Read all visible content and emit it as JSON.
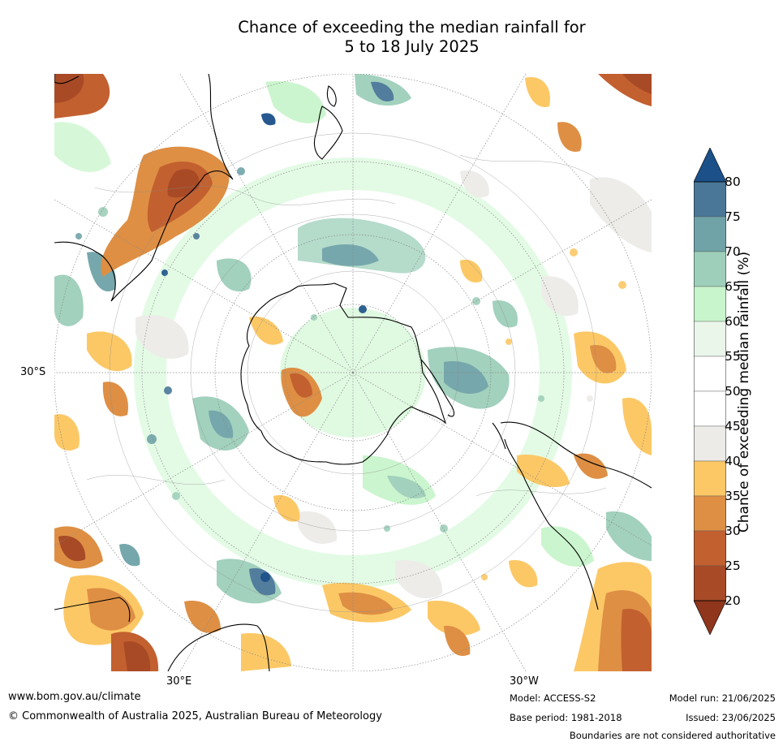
{
  "title": {
    "line1": "Chance of exceeding the median rainfall for",
    "line2": "5 to 18 July 2025"
  },
  "map": {
    "projection": "south-polar-stereographic",
    "labels": {
      "lat": "30°S",
      "lon_east": "30°E",
      "lon_west": "30°W"
    }
  },
  "legend": {
    "title": "Chance of exceeding median rainfall (%)",
    "ticks": [
      "80",
      "75",
      "70",
      "65",
      "60",
      "55",
      "50",
      "45",
      "40",
      "35",
      "30",
      "25",
      "20"
    ],
    "bins": [
      {
        "range": "75-80",
        "color": "#4a7797"
      },
      {
        "range": "70-75",
        "color": "#6fa3a8"
      },
      {
        "range": "65-70",
        "color": "#9ecfba"
      },
      {
        "range": "60-65",
        "color": "#c9f5cc"
      },
      {
        "range": "55-60",
        "color": "#eaf6ea"
      },
      {
        "range": "50-55",
        "color": "#ffffff"
      },
      {
        "range": "45-50",
        "color": "#ffffff"
      },
      {
        "range": "40-45",
        "color": "#edebe7"
      },
      {
        "range": "35-40",
        "color": "#fcc866"
      },
      {
        "range": "30-35",
        "color": "#de8f44"
      },
      {
        "range": "25-30",
        "color": "#c3602f"
      },
      {
        "range": "20-25",
        "color": "#a84a26"
      }
    ],
    "extend_high_color": "#1b5089",
    "extend_low_color": "#8f361c"
  },
  "footer": {
    "url": "www.bom.gov.au/climate",
    "copyright": "© Commonwealth of Australia 2025, Australian Bureau of Meteorology",
    "model": "Model: ACCESS-S2",
    "base_period": "Base period: 1981-2018",
    "model_run": "Model run: 21/06/2025",
    "issued": "Issued: 23/06/2025",
    "disclaimer": "Boundaries are not considered authoritative"
  }
}
